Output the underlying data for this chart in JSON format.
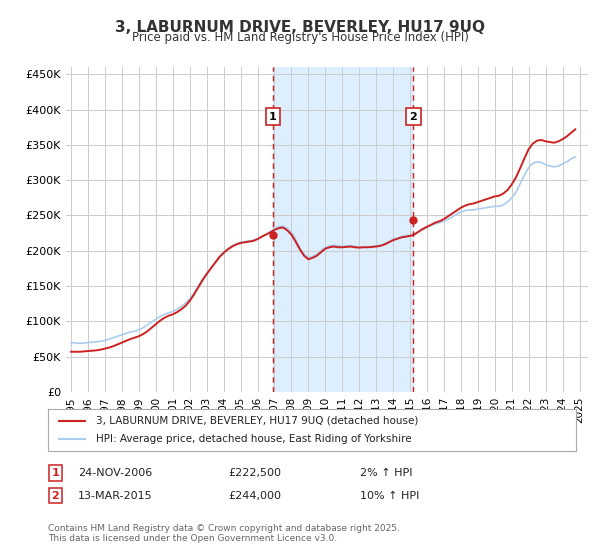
{
  "title": "3, LABURNUM DRIVE, BEVERLEY, HU17 9UQ",
  "subtitle": "Price paid vs. HM Land Registry's House Price Index (HPI)",
  "title_fontsize": 11,
  "subtitle_fontsize": 9,
  "ylabel_ticks": [
    "£0",
    "£50K",
    "£100K",
    "£150K",
    "£200K",
    "£250K",
    "£300K",
    "£350K",
    "£400K",
    "£450K"
  ],
  "ylim": [
    0,
    460000
  ],
  "xlim_start": 1995.0,
  "xlim_end": 2025.5,
  "background_color": "#ffffff",
  "plot_bg_color": "#ffffff",
  "grid_color": "#cccccc",
  "hpi_color": "#aaccee",
  "price_color": "#cc2222",
  "sale1_date": 2006.9,
  "sale2_date": 2015.2,
  "sale1_price": 222500,
  "sale2_price": 244000,
  "shade_color": "#ddeeff",
  "legend_label_price": "3, LABURNUM DRIVE, BEVERLEY, HU17 9UQ (detached house)",
  "legend_label_hpi": "HPI: Average price, detached house, East Riding of Yorkshire",
  "table_row1": [
    "1",
    "24-NOV-2006",
    "£222,500",
    "2% ↑ HPI"
  ],
  "table_row2": [
    "2",
    "13-MAR-2015",
    "£244,000",
    "10% ↑ HPI"
  ],
  "footnote": "Contains HM Land Registry data © Crown copyright and database right 2025.\nThis data is licensed under the Open Government Licence v3.0.",
  "hpi_data": {
    "years": [
      1995.0,
      1995.25,
      1995.5,
      1995.75,
      1996.0,
      1996.25,
      1996.5,
      1996.75,
      1997.0,
      1997.25,
      1997.5,
      1997.75,
      1998.0,
      1998.25,
      1998.5,
      1998.75,
      1999.0,
      1999.25,
      1999.5,
      1999.75,
      2000.0,
      2000.25,
      2000.5,
      2000.75,
      2001.0,
      2001.25,
      2001.5,
      2001.75,
      2002.0,
      2002.25,
      2002.5,
      2002.75,
      2003.0,
      2003.25,
      2003.5,
      2003.75,
      2004.0,
      2004.25,
      2004.5,
      2004.75,
      2005.0,
      2005.25,
      2005.5,
      2005.75,
      2006.0,
      2006.25,
      2006.5,
      2006.75,
      2007.0,
      2007.25,
      2007.5,
      2007.75,
      2008.0,
      2008.25,
      2008.5,
      2008.75,
      2009.0,
      2009.25,
      2009.5,
      2009.75,
      2010.0,
      2010.25,
      2010.5,
      2010.75,
      2011.0,
      2011.25,
      2011.5,
      2011.75,
      2012.0,
      2012.25,
      2012.5,
      2012.75,
      2013.0,
      2013.25,
      2013.5,
      2013.75,
      2014.0,
      2014.25,
      2014.5,
      2014.75,
      2015.0,
      2015.25,
      2015.5,
      2015.75,
      2016.0,
      2016.25,
      2016.5,
      2016.75,
      2017.0,
      2017.25,
      2017.5,
      2017.75,
      2018.0,
      2018.25,
      2018.5,
      2018.75,
      2019.0,
      2019.25,
      2019.5,
      2019.75,
      2020.0,
      2020.25,
      2020.5,
      2020.75,
      2021.0,
      2021.25,
      2021.5,
      2021.75,
      2022.0,
      2022.25,
      2022.5,
      2022.75,
      2023.0,
      2023.25,
      2023.5,
      2023.75,
      2024.0,
      2024.25,
      2024.5,
      2024.75
    ],
    "values": [
      70000,
      69500,
      69000,
      69000,
      70000,
      70500,
      71000,
      72000,
      73000,
      75000,
      77000,
      79000,
      81000,
      83000,
      85000,
      86000,
      88000,
      91000,
      95000,
      99000,
      103000,
      107000,
      110000,
      112000,
      114000,
      117000,
      121000,
      126000,
      132000,
      140000,
      150000,
      160000,
      168000,
      176000,
      184000,
      192000,
      198000,
      203000,
      207000,
      210000,
      212000,
      213000,
      214000,
      215000,
      217000,
      220000,
      223000,
      227000,
      231000,
      234000,
      235000,
      232000,
      226000,
      216000,
      204000,
      195000,
      190000,
      192000,
      195000,
      200000,
      205000,
      207000,
      208000,
      207000,
      206000,
      207000,
      207000,
      206000,
      205000,
      205000,
      205000,
      206000,
      207000,
      208000,
      210000,
      213000,
      216000,
      218000,
      220000,
      221000,
      222000,
      224000,
      227000,
      230000,
      233000,
      236000,
      238000,
      240000,
      242000,
      245000,
      248000,
      252000,
      255000,
      257000,
      258000,
      258000,
      259000,
      260000,
      261000,
      262000,
      263000,
      263000,
      265000,
      269000,
      275000,
      283000,
      295000,
      307000,
      318000,
      324000,
      326000,
      325000,
      322000,
      320000,
      319000,
      320000,
      323000,
      326000,
      330000,
      333000
    ]
  },
  "price_data": {
    "years": [
      1995.0,
      1995.25,
      1995.5,
      1995.75,
      1996.0,
      1996.25,
      1996.5,
      1996.75,
      1997.0,
      1997.25,
      1997.5,
      1997.75,
      1998.0,
      1998.25,
      1998.5,
      1998.75,
      1999.0,
      1999.25,
      1999.5,
      1999.75,
      2000.0,
      2000.25,
      2000.5,
      2000.75,
      2001.0,
      2001.25,
      2001.5,
      2001.75,
      2002.0,
      2002.25,
      2002.5,
      2002.75,
      2003.0,
      2003.25,
      2003.5,
      2003.75,
      2004.0,
      2004.25,
      2004.5,
      2004.75,
      2005.0,
      2005.25,
      2005.5,
      2005.75,
      2006.0,
      2006.25,
      2006.5,
      2006.75,
      2007.0,
      2007.25,
      2007.5,
      2007.75,
      2008.0,
      2008.25,
      2008.5,
      2008.75,
      2009.0,
      2009.25,
      2009.5,
      2009.75,
      2010.0,
      2010.25,
      2010.5,
      2010.75,
      2011.0,
      2011.25,
      2011.5,
      2011.75,
      2012.0,
      2012.25,
      2012.5,
      2012.75,
      2013.0,
      2013.25,
      2013.5,
      2013.75,
      2014.0,
      2014.25,
      2014.5,
      2014.75,
      2015.0,
      2015.25,
      2015.5,
      2015.75,
      2016.0,
      2016.25,
      2016.5,
      2016.75,
      2017.0,
      2017.25,
      2017.5,
      2017.75,
      2018.0,
      2018.25,
      2018.5,
      2018.75,
      2019.0,
      2019.25,
      2019.5,
      2019.75,
      2020.0,
      2020.25,
      2020.5,
      2020.75,
      2021.0,
      2021.25,
      2021.5,
      2021.75,
      2022.0,
      2022.25,
      2022.5,
      2022.75,
      2023.0,
      2023.25,
      2023.5,
      2023.75,
      2024.0,
      2024.25,
      2024.5,
      2024.75
    ],
    "values": [
      57000,
      57000,
      57000,
      57500,
      58000,
      58500,
      59000,
      60000,
      61500,
      63000,
      65000,
      67500,
      70000,
      72500,
      75000,
      77000,
      79000,
      82000,
      86000,
      91000,
      96000,
      101000,
      105000,
      108000,
      110000,
      113000,
      117000,
      122000,
      129000,
      138000,
      148000,
      158000,
      167000,
      175000,
      183000,
      191000,
      197000,
      202000,
      206000,
      209000,
      211000,
      212000,
      213000,
      214000,
      216500,
      220000,
      223000,
      226000,
      229500,
      232000,
      233000,
      229000,
      223000,
      213000,
      202000,
      193000,
      188000,
      190000,
      193000,
      198000,
      203000,
      205000,
      206000,
      205000,
      205000,
      205500,
      206000,
      205000,
      204500,
      205000,
      205000,
      205500,
      206000,
      207000,
      209000,
      212000,
      215000,
      217000,
      219000,
      220000,
      221000,
      223000,
      227000,
      231000,
      234000,
      237000,
      240000,
      242000,
      245000,
      249000,
      253000,
      257000,
      261000,
      264000,
      266000,
      267000,
      269000,
      271000,
      273000,
      275000,
      277000,
      278000,
      281000,
      286000,
      294000,
      304000,
      317000,
      331000,
      344000,
      352000,
      356000,
      357000,
      355000,
      354000,
      353000,
      355000,
      358000,
      362000,
      367000,
      372000
    ]
  }
}
